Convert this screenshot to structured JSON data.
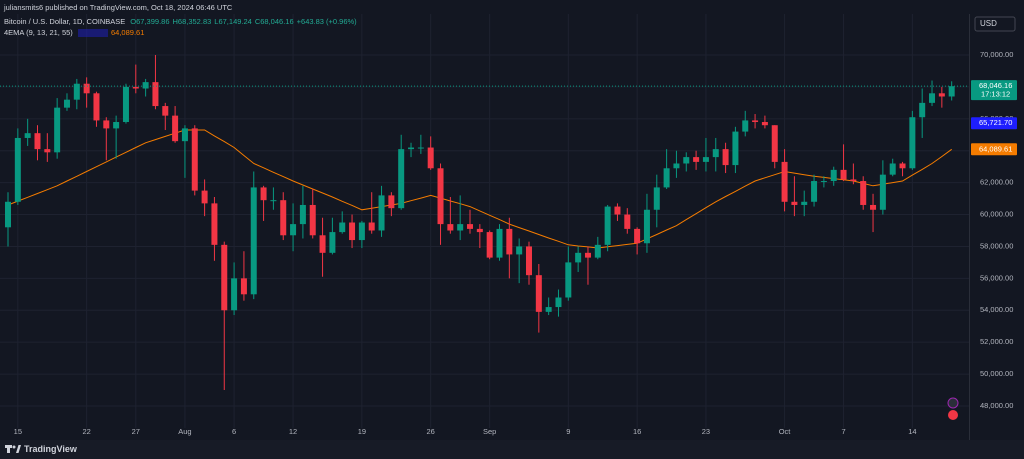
{
  "header": {
    "byline": "juliansmits6 published on TradingView.com, Oct 18, 2024 06:46 UTC",
    "symbol": "Bitcoin / U.S. Dollar, 1D, COINBASE",
    "ohlc": [
      "O67,399.86",
      "H68,352.83",
      "L67,149.24",
      "C68,046.16",
      "+643.83 (+0.96%)"
    ],
    "indicator": "4EMA (9, 13, 21, 55)",
    "indicator_value": "64,089.61"
  },
  "currency": "USD",
  "brand": "TradingView",
  "chart_data": {
    "type": "candlestick",
    "categories": [
      null,
      "15",
      null,
      null,
      null,
      null,
      null,
      null,
      "22",
      null,
      null,
      null,
      null,
      "27",
      null,
      null,
      null,
      null,
      "Aug",
      null,
      null,
      null,
      null,
      "6",
      null,
      null,
      null,
      null,
      null,
      "12",
      null,
      null,
      null,
      null,
      null,
      null,
      "19",
      null,
      null,
      null,
      null,
      null,
      null,
      "26",
      null,
      null,
      null,
      null,
      null,
      "Sep",
      null,
      null,
      null,
      null,
      null,
      null,
      null,
      "9",
      null,
      null,
      null,
      null,
      null,
      null,
      "16",
      null,
      null,
      null,
      null,
      null,
      null,
      "23",
      null,
      null,
      null,
      null,
      null,
      null,
      null,
      "Oct",
      null,
      null,
      null,
      null,
      null,
      "7",
      null,
      null,
      null,
      null,
      null,
      null,
      "14",
      null,
      null,
      null,
      null
    ],
    "open": [
      59200,
      60800,
      64800,
      65100,
      64100,
      63900,
      66700,
      67200,
      68200,
      67600,
      65900,
      65400,
      65800,
      68000,
      67900,
      68300,
      66800,
      66200,
      64600,
      65400,
      61500,
      60700,
      58100,
      54000,
      56000,
      55000,
      61700,
      60900,
      60900,
      58700,
      59400,
      60600,
      58700,
      57600,
      58900,
      59500,
      58400,
      59500,
      59000,
      61200,
      60400,
      64100,
      64200,
      64200,
      62900,
      59400,
      59000,
      59400,
      59100,
      58900,
      57300,
      59100,
      57500,
      58000,
      56200,
      53900,
      54200,
      54800,
      57000,
      57600,
      57300,
      58100,
      60500,
      60000,
      59100,
      58200,
      60300,
      61700,
      62900,
      63200,
      63600,
      63300,
      63600,
      64100,
      63100,
      65200,
      65900,
      65800,
      65600,
      63300,
      60800,
      60600,
      60800,
      62100,
      62100,
      62800,
      62200,
      62100,
      60600,
      60300,
      62500,
      63200,
      62900,
      66100,
      67000,
      67600,
      67399.86
    ],
    "high": [
      61400,
      65400,
      66000,
      65600,
      65100,
      67300,
      67600,
      68500,
      68600,
      67700,
      66100,
      66200,
      68200,
      69400,
      68500,
      70000,
      67000,
      66800,
      65600,
      65600,
      62200,
      61100,
      58300,
      57000,
      57700,
      62700,
      61800,
      61700,
      61400,
      60700,
      61800,
      61600,
      59800,
      59800,
      60200,
      60000,
      59600,
      61400,
      61800,
      61400,
      65000,
      64500,
      65000,
      64900,
      63200,
      61100,
      61200,
      60300,
      59400,
      59000,
      59400,
      59800,
      58500,
      58300,
      56900,
      54800,
      55300,
      58000,
      58000,
      58000,
      58600,
      60600,
      60700,
      60400,
      59200,
      61300,
      62500,
      64100,
      64000,
      63900,
      64000,
      64800,
      64800,
      64500,
      65500,
      66500,
      66300,
      66200,
      65600,
      64100,
      62400,
      61500,
      62500,
      62400,
      63000,
      64400,
      63200,
      62400,
      61300,
      63400,
      63500,
      63300,
      66500,
      67900,
      68400,
      68000,
      68352.83
    ],
    "low": [
      58000,
      60600,
      64300,
      63400,
      63300,
      63500,
      66500,
      66600,
      66700,
      65500,
      63400,
      63500,
      65700,
      67600,
      67400,
      66600,
      65300,
      64500,
      62300,
      61200,
      59900,
      57100,
      49000,
      53700,
      54600,
      54700,
      59600,
      60300,
      58400,
      57700,
      58500,
      58500,
      56100,
      57500,
      58800,
      57900,
      57900,
      58800,
      58600,
      59900,
      60300,
      63600,
      63800,
      62800,
      58100,
      58800,
      58400,
      58800,
      57900,
      57200,
      57100,
      56000,
      55700,
      55600,
      52600,
      53700,
      53600,
      54600,
      56400,
      55600,
      57200,
      57700,
      59600,
      58800,
      57500,
      57600,
      59200,
      61600,
      62300,
      62700,
      62800,
      62700,
      62700,
      62600,
      62600,
      64900,
      65400,
      65400,
      62900,
      60200,
      59900,
      59900,
      60500,
      61700,
      61800,
      62100,
      61900,
      60300,
      58900,
      60000,
      62400,
      62400,
      62800,
      64800,
      66800,
      66700,
      67149.24
    ],
    "close": [
      60800,
      64800,
      65100,
      64100,
      63900,
      66700,
      67200,
      68200,
      67600,
      65900,
      65400,
      65800,
      68000,
      67900,
      68300,
      66800,
      66200,
      64600,
      65400,
      61500,
      60700,
      58100,
      54000,
      56000,
      55000,
      61700,
      60900,
      60900,
      58700,
      59400,
      60600,
      58700,
      57600,
      58900,
      59500,
      58400,
      59500,
      59000,
      61200,
      60400,
      64100,
      64200,
      64200,
      62900,
      59400,
      59000,
      59400,
      59100,
      58900,
      57300,
      59100,
      57500,
      58000,
      56200,
      53900,
      54200,
      54800,
      57000,
      57600,
      57300,
      58100,
      60500,
      60000,
      59100,
      58200,
      60300,
      61700,
      62900,
      63200,
      63600,
      63300,
      63600,
      64100,
      63100,
      65200,
      65900,
      65800,
      65600,
      63300,
      60800,
      60600,
      60800,
      62100,
      62100,
      62800,
      62200,
      62100,
      60600,
      60300,
      62500,
      63200,
      62900,
      66100,
      67000,
      67600,
      67400,
      68046.16
    ],
    "up_color": "#089981",
    "down_color": "#f23645",
    "ema_line": {
      "color": "#f57c00",
      "values": [
        60600,
        60840,
        61080,
        61320,
        61560,
        61800,
        62100,
        62400,
        62700,
        63000,
        63300,
        63600,
        63900,
        64200,
        64500,
        64700,
        64900,
        65100,
        65300,
        65300,
        65300,
        64930,
        64570,
        64200,
        63700,
        63200,
        62930,
        62650,
        62380,
        62100,
        61850,
        61600,
        61350,
        61100,
        60830,
        60570,
        60300,
        60400,
        60500,
        60600,
        60700,
        60870,
        61030,
        61200,
        61030,
        60850,
        60680,
        60500,
        60230,
        59950,
        59680,
        59400,
        59180,
        58970,
        58750,
        58530,
        58320,
        58100,
        58030,
        57970,
        57900,
        57980,
        58050,
        58130,
        58200,
        58480,
        58750,
        59030,
        59300,
        59680,
        60050,
        60430,
        60800,
        61130,
        61450,
        61780,
        62100,
        62300,
        62500,
        62700,
        62600,
        62500,
        62400,
        62330,
        62250,
        62180,
        62100,
        61950,
        61800,
        61900,
        62000,
        62100,
        62470,
        62830,
        63200,
        63640,
        64089.61
      ]
    },
    "ylim": [
      46870,
      72320
    ],
    "yticks": [
      {
        "value": 48000,
        "label": "48,000.00"
      },
      {
        "value": 50000,
        "label": "50,000.00"
      },
      {
        "value": 52000,
        "label": "52,000.00"
      },
      {
        "value": 54000,
        "label": "54,000.00"
      },
      {
        "value": 56000,
        "label": "56,000.00"
      },
      {
        "value": 58000,
        "label": "58,000.00"
      },
      {
        "value": 60000,
        "label": "60,000.00"
      },
      {
        "value": 62000,
        "label": "62,000.00"
      },
      {
        "value": 64000,
        "label": "64,000.00"
      },
      {
        "value": 66000,
        "label": "66,000.00"
      },
      {
        "value": 68000,
        "label": "68,000.00"
      },
      {
        "value": 70000,
        "label": "70,000.00"
      }
    ],
    "grid": true,
    "price_labels": [
      {
        "value": 68046.16,
        "label": "68,046.16",
        "countdown": "17:13:12",
        "color": "#089981"
      },
      {
        "value": 65721.7,
        "label": "65,721.70",
        "color": "#1e1eff"
      },
      {
        "value": 64089.61,
        "label": "64,089.61",
        "color": "#f57c00"
      }
    ]
  }
}
